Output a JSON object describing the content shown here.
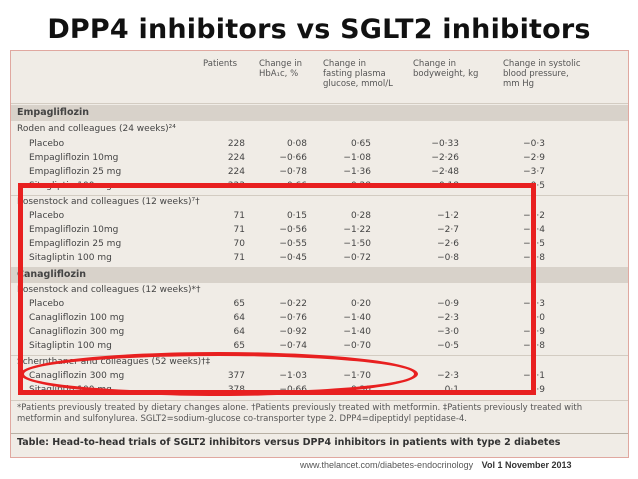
{
  "slide_title": "DPP4 inhibitors vs SGLT2 inhibitors",
  "table": {
    "headers": [
      "Patients",
      "Change in HbA₁c, %",
      "Change in fasting plasma glucose, mmol/L",
      "Change in bodyweight, kg",
      "Change in systolic blood pressure, mm Hg"
    ],
    "sections": [
      {
        "title": "Empagliflozin",
        "studies": [
          {
            "title": "Roden and colleagues (24 weeks)²⁴",
            "rows": [
              [
                "Placebo",
                "228",
                "0·08",
                "0·65",
                "−0·33",
                "−0·3"
              ],
              [
                "Empagliflozin 10mg",
                "224",
                "−0·66",
                "−1·08",
                "−2·26",
                "−2·9"
              ],
              [
                "Empagliflozin 25 mg",
                "224",
                "−0·78",
                "−1·36",
                "−2·48",
                "−3·7"
              ],
              [
                "Sitagliptin 100 mg",
                "223",
                "−0·66",
                "−0·28",
                "0·18",
                "0·5"
              ]
            ]
          },
          {
            "title": "Rosenstock and colleagues (12 weeks)⁷†",
            "rows": [
              [
                "Placebo",
                "71",
                "0·15",
                "0·28",
                "−1·2",
                "−2·2"
              ],
              [
                "Empagliflozin 10mg",
                "71",
                "−0·56",
                "−1·22",
                "−2·7",
                "−4·4"
              ],
              [
                "Empagliflozin 25 mg",
                "70",
                "−0·55",
                "−1·50",
                "−2·6",
                "−8·5"
              ],
              [
                "Sitagliptin 100 mg",
                "71",
                "−0·45",
                "−0·72",
                "−0·8",
                "−1·8"
              ]
            ]
          }
        ]
      },
      {
        "title": "Canagliflozin",
        "studies": [
          {
            "title": "Rosenstock and colleagues (12 weeks)*†",
            "rows": [
              [
                "Placebo",
                "65",
                "−0·22",
                "0·20",
                "−0·9",
                "−1·3"
              ],
              [
                "Canagliflozin 100 mg",
                "64",
                "−0·76",
                "−1·40",
                "−2·3",
                "1·0"
              ],
              [
                "Canagliflozin 300 mg",
                "64",
                "−0·92",
                "−1·40",
                "−3·0",
                "−4·9"
              ],
              [
                "Sitagliptin 100 mg",
                "65",
                "−0·74",
                "−0·70",
                "−0·5",
                "−0·8"
              ]
            ]
          },
          {
            "title": "Schernthaner and colleagues (52 weeks)†‡",
            "rows": [
              [
                "Canagliflozin 300 mg",
                "377",
                "−1·03",
                "−1·70",
                "−2·3",
                "−5·1"
              ],
              [
                "Sitagliptin 100 mg",
                "378",
                "−0·66",
                "−0·30",
                "0·1",
                "0·9"
              ]
            ]
          }
        ]
      }
    ],
    "footnote": "*Patients previously treated by dietary changes alone. †Patients previously treated with metformin. ‡Patients previously treated with metformin and sulfonylurea. SGLT2=sodium-glucose co-transporter type 2. DPP4=dipeptidyl peptidase-4.",
    "caption": "Table: Head-to-head trials of SGLT2 inhibitors versus DPP4 inhibitors in patients with type 2 diabetes"
  },
  "credit": {
    "url": "www.thelancet.com/diabetes-endocrinology",
    "issue": "Vol 1   November 2013"
  },
  "highlight_color": "#e82020"
}
